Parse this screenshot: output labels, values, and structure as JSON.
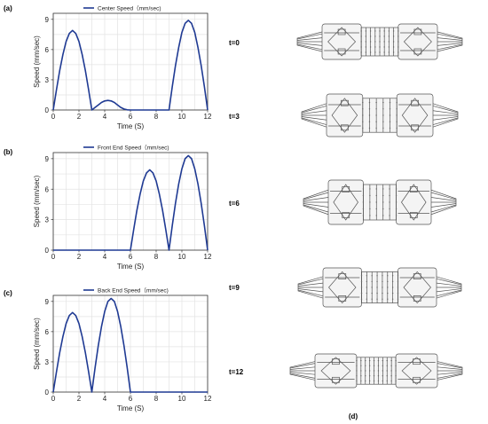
{
  "chart_data": [
    {
      "type": "line",
      "panel_label": "(a)",
      "xlabel": "Time (S)",
      "ylabel": "Speed (mm/sec)",
      "xlim": [
        0,
        12
      ],
      "ylim": [
        0,
        9.6
      ],
      "x_ticks": [
        "0",
        "2",
        "4",
        "6",
        "8",
        "10",
        "12"
      ],
      "y_ticks": [
        "0",
        "3",
        "6",
        "9"
      ],
      "grid": true,
      "legend_position": "top-center",
      "series": [
        {
          "name": "Center Speed（mm/sec)",
          "x": [
            0,
            0.25,
            0.5,
            0.75,
            1,
            1.25,
            1.5,
            1.75,
            2,
            2.25,
            2.5,
            2.75,
            3,
            3.25,
            3.5,
            3.75,
            4,
            4.25,
            4.5,
            4.75,
            5,
            5.25,
            5.5,
            5.75,
            6,
            7,
            8,
            9,
            9.25,
            9.5,
            9.75,
            10,
            10.25,
            10.5,
            10.75,
            11,
            11.25,
            11.5,
            11.75,
            12
          ],
          "y": [
            0,
            2.0,
            3.9,
            5.5,
            6.8,
            7.6,
            7.9,
            7.6,
            6.8,
            5.5,
            3.9,
            2.0,
            0,
            0.25,
            0.5,
            0.75,
            0.9,
            0.95,
            0.9,
            0.75,
            0.5,
            0.25,
            0.1,
            0.02,
            0,
            0,
            0,
            0,
            2.3,
            4.4,
            6.2,
            7.7,
            8.6,
            8.9,
            8.6,
            7.7,
            6.2,
            4.4,
            2.3,
            0
          ]
        }
      ]
    },
    {
      "type": "line",
      "panel_label": "(b)",
      "xlabel": "Time (S)",
      "ylabel": "Speed (mm/sec)",
      "xlim": [
        0,
        12
      ],
      "ylim": [
        0,
        9.6
      ],
      "x_ticks": [
        "0",
        "2",
        "4",
        "6",
        "8",
        "10",
        "12"
      ],
      "y_ticks": [
        "0",
        "3",
        "6",
        "9"
      ],
      "grid": true,
      "legend_position": "top-center",
      "series": [
        {
          "name": "Front End Speed（mm/sec)",
          "x": [
            0,
            2,
            4,
            6,
            6.25,
            6.5,
            6.75,
            7,
            7.25,
            7.5,
            7.75,
            8,
            8.25,
            8.5,
            8.75,
            9,
            9.25,
            9.5,
            9.75,
            10,
            10.25,
            10.5,
            10.75,
            11,
            11.25,
            11.5,
            11.75,
            12
          ],
          "y": [
            0,
            0,
            0,
            0,
            2.0,
            3.9,
            5.5,
            6.8,
            7.6,
            7.9,
            7.6,
            6.8,
            5.5,
            3.9,
            2.0,
            0,
            2.4,
            4.6,
            6.5,
            8.0,
            9.0,
            9.3,
            9.0,
            8.0,
            6.5,
            4.6,
            2.4,
            0
          ]
        }
      ]
    },
    {
      "type": "line",
      "panel_label": "(c)",
      "xlabel": "Time (S)",
      "ylabel": "Speed (mm/sec)",
      "xlim": [
        0,
        12
      ],
      "ylim": [
        0,
        9.6
      ],
      "x_ticks": [
        "0",
        "2",
        "4",
        "6",
        "8",
        "10",
        "12"
      ],
      "y_ticks": [
        "0",
        "3",
        "6",
        "9"
      ],
      "grid": true,
      "legend_position": "top-center",
      "series": [
        {
          "name": "Back End Speed（mm/sec)",
          "x": [
            0,
            0.25,
            0.5,
            0.75,
            1,
            1.25,
            1.5,
            1.75,
            2,
            2.25,
            2.5,
            2.75,
            3,
            3.25,
            3.5,
            3.75,
            4,
            4.25,
            4.5,
            4.75,
            5,
            5.25,
            5.5,
            5.75,
            6,
            8,
            10,
            12
          ],
          "y": [
            0,
            2.0,
            3.9,
            5.5,
            6.8,
            7.6,
            7.9,
            7.6,
            6.8,
            5.5,
            3.9,
            2.0,
            0,
            2.4,
            4.6,
            6.5,
            8.0,
            9.0,
            9.3,
            9.0,
            8.0,
            6.5,
            4.6,
            2.4,
            0,
            0,
            0,
            0
          ]
        }
      ]
    }
  ],
  "robot_panel": {
    "label": "(d)",
    "time_labels": [
      "t=0",
      "t=3",
      "t=6",
      "t=9",
      "t=12"
    ]
  }
}
